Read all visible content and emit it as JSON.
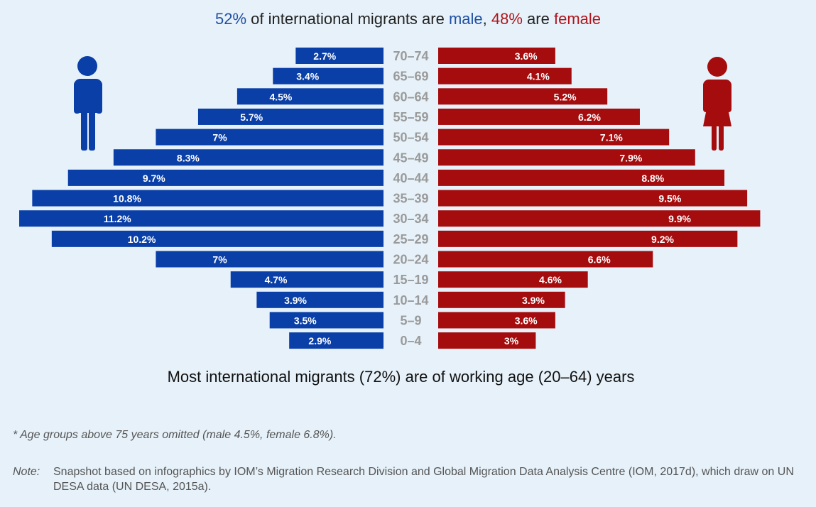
{
  "header": {
    "male_pct": "52%",
    "mid1": " of international migrants are ",
    "male_word": "male",
    "comma": ", ",
    "female_pct": "48%",
    "mid2": " are ",
    "female_word": "female"
  },
  "chart_data": {
    "type": "bar",
    "orientation": "horizontal-pyramid",
    "categories": [
      "70–74",
      "65–69",
      "60–64",
      "55–59",
      "50–54",
      "45–49",
      "40–44",
      "35–39",
      "30–34",
      "25–29",
      "20–24",
      "15–19",
      "10–14",
      "5–9",
      "0–4"
    ],
    "series": [
      {
        "name": "male",
        "values": [
          2.7,
          3.4,
          4.5,
          5.7,
          7,
          8.3,
          9.7,
          10.8,
          11.2,
          10.2,
          7,
          4.7,
          3.9,
          3.5,
          2.9
        ],
        "labels": [
          "2.7%",
          "3.4%",
          "4.5%",
          "5.7%",
          "7%",
          "8.3%",
          "9.7%",
          "10.8%",
          "11.2%",
          "10.2%",
          "7%",
          "4.7%",
          "3.9%",
          "3.5%",
          "2.9%"
        ],
        "color": "#0a3fa7"
      },
      {
        "name": "female",
        "values": [
          3.6,
          4.1,
          5.2,
          6.2,
          7.1,
          7.9,
          8.8,
          9.5,
          9.9,
          9.2,
          6.6,
          4.6,
          3.9,
          3.6,
          3
        ],
        "labels": [
          "3.6%",
          "4.1%",
          "5.2%",
          "6.2%",
          "7.1%",
          "7.9%",
          "8.8%",
          "9.5%",
          "9.9%",
          "9.2%",
          "6.6%",
          "4.6%",
          "3.9%",
          "3.6%",
          "3%"
        ],
        "color": "#a50c0e"
      }
    ],
    "icons": {
      "male": "male-person-icon",
      "female": "female-person-icon"
    },
    "colors": {
      "age_label": "#9a9a9a",
      "male_title": "#1f4fa3",
      "female_title": "#b0161d"
    }
  },
  "subtitle": "Most international migrants (72%) are of working age (20–64) years",
  "footnote": "* Age groups above 75 years omitted (male 4.5%, female 6.8%).",
  "note": {
    "label": "Note:",
    "text": "Snapshot based on infographics by IOM’s Migration Research Division and Global Migration Data Analysis Centre (IOM, 2017d), which draw on UN DESA data (UN DESA, 2015a)."
  }
}
